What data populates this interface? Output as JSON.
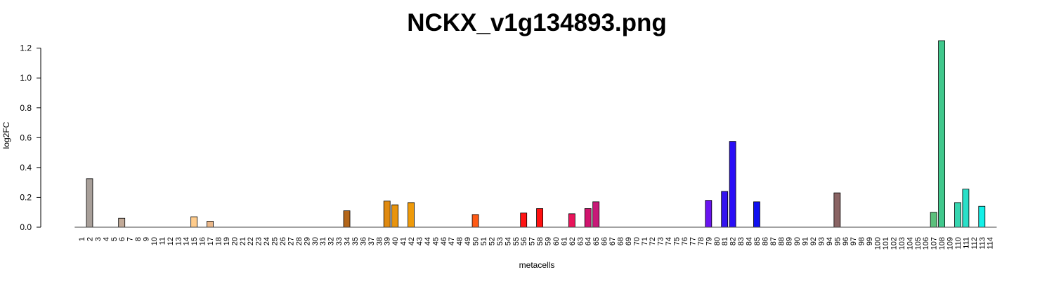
{
  "chart_data": {
    "type": "bar",
    "title": "NCKX_v1g134893.png",
    "xlabel": "metacells",
    "ylabel": "log2FC",
    "ylim": [
      0,
      1.25
    ],
    "yticks": [
      "0.0",
      "0.2",
      "0.4",
      "0.6",
      "0.8",
      "1.0",
      "1.2"
    ],
    "grid": false,
    "categories": [
      "1",
      "2",
      "3",
      "4",
      "5",
      "6",
      "7",
      "8",
      "9",
      "10",
      "11",
      "12",
      "13",
      "14",
      "15",
      "16",
      "17",
      "18",
      "19",
      "20",
      "21",
      "22",
      "23",
      "24",
      "25",
      "26",
      "27",
      "28",
      "29",
      "30",
      "31",
      "32",
      "33",
      "34",
      "35",
      "36",
      "37",
      "38",
      "39",
      "40",
      "41",
      "42",
      "43",
      "44",
      "45",
      "46",
      "47",
      "48",
      "49",
      "50",
      "51",
      "52",
      "53",
      "54",
      "55",
      "56",
      "57",
      "58",
      "59",
      "60",
      "61",
      "62",
      "63",
      "64",
      "65",
      "66",
      "67",
      "68",
      "69",
      "70",
      "71",
      "72",
      "73",
      "74",
      "75",
      "76",
      "77",
      "78",
      "79",
      "80",
      "81",
      "82",
      "83",
      "84",
      "85",
      "86",
      "87",
      "88",
      "89",
      "90",
      "91",
      "92",
      "93",
      "94",
      "95",
      "96",
      "97",
      "98",
      "99",
      "100",
      "101",
      "102",
      "103",
      "104",
      "105",
      "106",
      "107",
      "108",
      "109",
      "110",
      "111",
      "112",
      "113",
      "114"
    ],
    "values": [
      0,
      0.325,
      0,
      0,
      0,
      0.06,
      0,
      0,
      0,
      0,
      0,
      0,
      0,
      0,
      0.07,
      0,
      0.04,
      0,
      0,
      0,
      0,
      0,
      0,
      0,
      0,
      0,
      0,
      0,
      0,
      0,
      0,
      0,
      0,
      0.11,
      0,
      0,
      0,
      0,
      0.175,
      0.15,
      0,
      0.165,
      0,
      0,
      0,
      0,
      0,
      0,
      0,
      0.085,
      0,
      0,
      0,
      0,
      0,
      0.095,
      0,
      0.125,
      0,
      0,
      0,
      0.09,
      0,
      0.125,
      0.17,
      0,
      0,
      0,
      0,
      0,
      0,
      0,
      0,
      0,
      0,
      0,
      0,
      0,
      0.18,
      0,
      0.24,
      0.575,
      0,
      0,
      0.17,
      0,
      0,
      0,
      0,
      0,
      0,
      0,
      0,
      0,
      0.23,
      0,
      0,
      0,
      0,
      0,
      0,
      0,
      0,
      0,
      0,
      0,
      0.1,
      1.25,
      0,
      0.165,
      0.255,
      0,
      0.14,
      0
    ],
    "colors": [
      "#a89f99",
      "#a89f99",
      "#a89f99",
      "#a89f99",
      "#a89f99",
      "#c2aa98",
      "#c2aa98",
      "#c2aa98",
      "#c2aa98",
      "#c2aa98",
      "#c2aa98",
      "#c2aa98",
      "#c2aa98",
      "#c2aa98",
      "#ffcc8c",
      "#ffcc8c",
      "#ebb88a",
      "#ebb88a",
      "#ebb88a",
      "#ebb88a",
      "#ebb88a",
      "#ebb88a",
      "#ebb88a",
      "#ebb88a",
      "#ebb88a",
      "#ebb88a",
      "#ebb88a",
      "#ebb88a",
      "#ebb88a",
      "#ebb88a",
      "#ebb88a",
      "#ebb88a",
      "#ebb88a",
      "#b3661a",
      "#b3661a",
      "#b3661a",
      "#b3661a",
      "#b3661a",
      "#e08a10",
      "#e8940e",
      "#e8940e",
      "#ee9a0a",
      "#ee9a0a",
      "#ee9a0a",
      "#ee9a0a",
      "#ee9a0a",
      "#ee9a0a",
      "#ee9a0a",
      "#ee9a0a",
      "#ff5a14",
      "#ff5a14",
      "#ff5a14",
      "#ff5a14",
      "#ff5a14",
      "#ff5a14",
      "#ff1414",
      "#ff1414",
      "#ff1010",
      "#ff1010",
      "#ff1010",
      "#ff1010",
      "#e8145a",
      "#e8145a",
      "#d0146e",
      "#c81a78",
      "#c81a78",
      "#c81a78",
      "#c81a78",
      "#c81a78",
      "#c81a78",
      "#c81a78",
      "#c81a78",
      "#c81a78",
      "#c81a78",
      "#c81a78",
      "#c81a78",
      "#c81a78",
      "#c81a78",
      "#6a14f0",
      "#6a14f0",
      "#3414f0",
      "#2a0ef5",
      "#2a0ef5",
      "#2a0ef5",
      "#1010f0",
      "#1010f0",
      "#1010f0",
      "#1010f0",
      "#1010f0",
      "#1010f0",
      "#1010f0",
      "#1010f0",
      "#1010f0",
      "#1010f0",
      "#8a6464",
      "#8a6464",
      "#8a6464",
      "#8a6464",
      "#8a6464",
      "#8a6464",
      "#8a6464",
      "#8a6464",
      "#8a6464",
      "#8a6464",
      "#8a6464",
      "#8a6464",
      "#5cc07c",
      "#40c88c",
      "#40c88c",
      "#36d6b0",
      "#2ae0c8",
      "#2ae0c8",
      "#14f0e8",
      "#14f0e8"
    ]
  }
}
